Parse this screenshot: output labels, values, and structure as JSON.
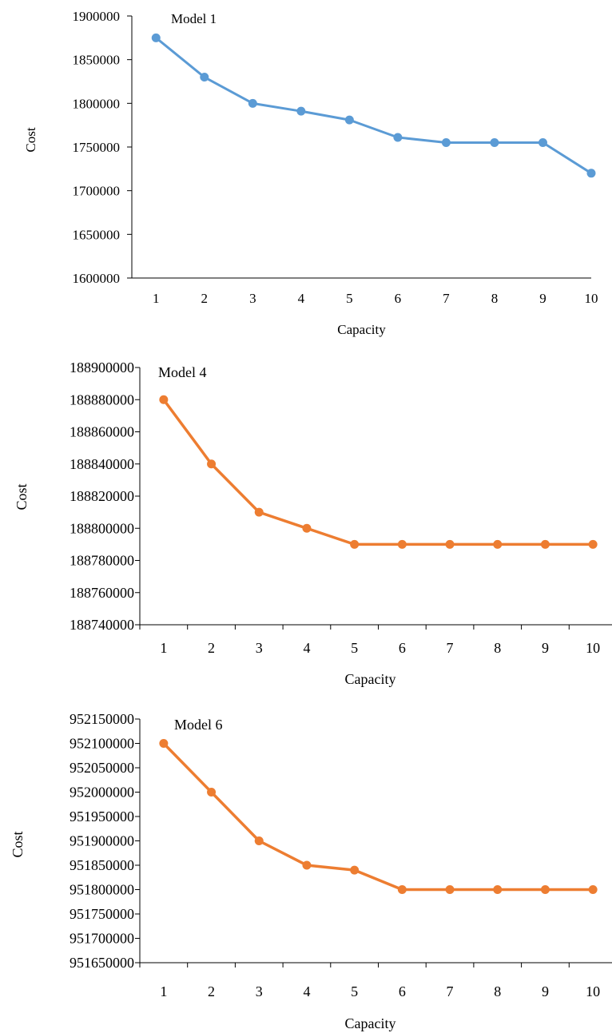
{
  "chart_data": [
    {
      "type": "line",
      "annotation": "Model 1",
      "xlabel": "Capacity",
      "ylabel": "Cost",
      "categories": [
        "1",
        "2",
        "3",
        "4",
        "5",
        "6",
        "7",
        "8",
        "9",
        "10"
      ],
      "y_ticks": [
        "1600000",
        "1650000",
        "1700000",
        "1750000",
        "1800000",
        "1850000",
        "1900000"
      ],
      "ylim": [
        1600000,
        1900000
      ],
      "series": [
        {
          "values": [
            1875000,
            1830000,
            1800000,
            1791000,
            1781000,
            1761000,
            1755000,
            1755000,
            1755000,
            1720000
          ]
        }
      ],
      "color": "#5B9BD5",
      "grid": false,
      "x_axis_ticks_between_categories": false
    },
    {
      "type": "line",
      "annotation": "Model 4",
      "xlabel": "Capacity",
      "ylabel": "Cost",
      "categories": [
        "1",
        "2",
        "3",
        "4",
        "5",
        "6",
        "7",
        "8",
        "9",
        "10"
      ],
      "y_ticks": [
        "188740000",
        "188760000",
        "188780000",
        "188800000",
        "188820000",
        "188840000",
        "188860000",
        "188880000",
        "188900000"
      ],
      "ylim": [
        188740000,
        188900000
      ],
      "series": [
        {
          "values": [
            188880000,
            188840000,
            188810000,
            188800000,
            188790000,
            188790000,
            188790000,
            188790000,
            188790000,
            188790000
          ]
        }
      ],
      "color": "#ED7D31",
      "grid": false,
      "x_axis_ticks_between_categories": true
    },
    {
      "type": "line",
      "annotation": "Model 6",
      "xlabel": "Capacity",
      "ylabel": "Cost",
      "categories": [
        "1",
        "2",
        "3",
        "4",
        "5",
        "6",
        "7",
        "8",
        "9",
        "10"
      ],
      "y_ticks": [
        "951650000",
        "951700000",
        "951750000",
        "951800000",
        "951850000",
        "951900000",
        "951950000",
        "952000000",
        "952050000",
        "952100000",
        "952150000"
      ],
      "ylim": [
        951650000,
        952150000
      ],
      "series": [
        {
          "values": [
            952100000,
            952000000,
            951900000,
            951850000,
            951840000,
            951800000,
            951800000,
            951800000,
            951800000,
            951800000
          ]
        }
      ],
      "color": "#ED7D31",
      "grid": false,
      "x_axis_ticks_between_categories": true
    }
  ]
}
